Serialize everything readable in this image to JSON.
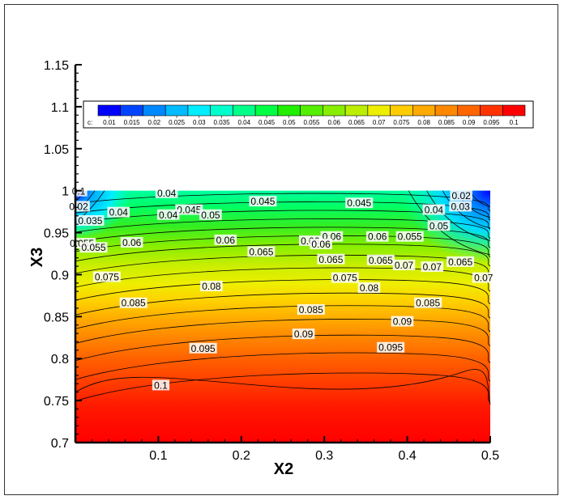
{
  "chart_data": {
    "type": "contour",
    "xlabel": "X2",
    "ylabel": "X3",
    "xlim": [
      0.0,
      0.5
    ],
    "ylim": [
      0.7,
      1.15
    ],
    "data_ylim": [
      0.7,
      1.0
    ],
    "x_ticks": [
      "0.1",
      "0.2",
      "0.3",
      "0.4",
      "0.5"
    ],
    "x_tick_values": [
      0.1,
      0.2,
      0.3,
      0.4,
      0.5
    ],
    "y_ticks": [
      "0.7",
      "0.75",
      "0.8",
      "0.85",
      "0.9",
      "0.95",
      "1",
      "1.05",
      "1.1",
      "1.15"
    ],
    "y_tick_values": [
      0.7,
      0.75,
      0.8,
      0.85,
      0.9,
      0.95,
      1.0,
      1.05,
      1.1,
      1.15
    ],
    "legend": {
      "variable": "c:",
      "levels": [
        "0.01",
        "0.015",
        "0.02",
        "0.025",
        "0.03",
        "0.035",
        "0.04",
        "0.045",
        "0.05",
        "0.055",
        "0.06",
        "0.065",
        "0.07",
        "0.075",
        "0.08",
        "0.085",
        "0.09",
        "0.095",
        "0.1"
      ],
      "colors": [
        "#0000ff",
        "#0044ff",
        "#0088ff",
        "#00bbff",
        "#00eeff",
        "#00ffcc",
        "#00ff88",
        "#00ff44",
        "#22ee00",
        "#55ee00",
        "#88ee00",
        "#bbee00",
        "#eeee00",
        "#ffcc00",
        "#ffaa00",
        "#ff8800",
        "#ff6600",
        "#ff3300",
        "#ff0000"
      ],
      "placement": "top"
    },
    "contour_labels": [
      {
        "text": "0.1",
        "x": 0.004,
        "y": 0.999
      },
      {
        "text": "0.02",
        "x": 0.004,
        "y": 0.981
      },
      {
        "text": "0.04",
        "x": 0.11,
        "y": 0.997
      },
      {
        "text": "0.035",
        "x": 0.018,
        "y": 0.964
      },
      {
        "text": "0.04",
        "x": 0.052,
        "y": 0.974
      },
      {
        "text": "0.045",
        "x": 0.137,
        "y": 0.977
      },
      {
        "text": "0.04",
        "x": 0.112,
        "y": 0.971
      },
      {
        "text": "0.05",
        "x": 0.163,
        "y": 0.971
      },
      {
        "text": "0.045",
        "x": 0.226,
        "y": 0.987
      },
      {
        "text": "0.045",
        "x": 0.342,
        "y": 0.985
      },
      {
        "text": "0.04",
        "x": 0.432,
        "y": 0.977
      },
      {
        "text": "0.02",
        "x": 0.465,
        "y": 0.994
      },
      {
        "text": "0.03",
        "x": 0.464,
        "y": 0.981
      },
      {
        "text": "0.05",
        "x": 0.438,
        "y": 0.958
      },
      {
        "text": "0.055",
        "x": 0.008,
        "y": 0.937
      },
      {
        "text": "0.055",
        "x": 0.022,
        "y": 0.932
      },
      {
        "text": "0.06",
        "x": 0.068,
        "y": 0.938
      },
      {
        "text": "0.06",
        "x": 0.181,
        "y": 0.941
      },
      {
        "text": "0.06",
        "x": 0.283,
        "y": 0.94
      },
      {
        "text": "0.06",
        "x": 0.309,
        "y": 0.945
      },
      {
        "text": "0.06",
        "x": 0.296,
        "y": 0.936
      },
      {
        "text": "0.06",
        "x": 0.364,
        "y": 0.945
      },
      {
        "text": "0.055",
        "x": 0.403,
        "y": 0.945
      },
      {
        "text": "0.065",
        "x": 0.224,
        "y": 0.927
      },
      {
        "text": "0.065",
        "x": 0.308,
        "y": 0.918
      },
      {
        "text": "0.065",
        "x": 0.368,
        "y": 0.917
      },
      {
        "text": "0.07",
        "x": 0.396,
        "y": 0.911
      },
      {
        "text": "0.07",
        "x": 0.43,
        "y": 0.909
      },
      {
        "text": "0.065",
        "x": 0.464,
        "y": 0.915
      },
      {
        "text": "0.075",
        "x": 0.038,
        "y": 0.897
      },
      {
        "text": "0.075",
        "x": 0.325,
        "y": 0.896
      },
      {
        "text": "0.07",
        "x": 0.492,
        "y": 0.896
      },
      {
        "text": "0.08",
        "x": 0.164,
        "y": 0.886
      },
      {
        "text": "0.08",
        "x": 0.354,
        "y": 0.884
      },
      {
        "text": "0.085",
        "x": 0.07,
        "y": 0.866
      },
      {
        "text": "0.085",
        "x": 0.284,
        "y": 0.858
      },
      {
        "text": "0.085",
        "x": 0.425,
        "y": 0.866
      },
      {
        "text": "0.09",
        "x": 0.394,
        "y": 0.844
      },
      {
        "text": "0.09",
        "x": 0.275,
        "y": 0.829
      },
      {
        "text": "0.095",
        "x": 0.154,
        "y": 0.812
      },
      {
        "text": "0.095",
        "x": 0.38,
        "y": 0.813
      },
      {
        "text": "0.1",
        "x": 0.103,
        "y": 0.768
      }
    ]
  }
}
